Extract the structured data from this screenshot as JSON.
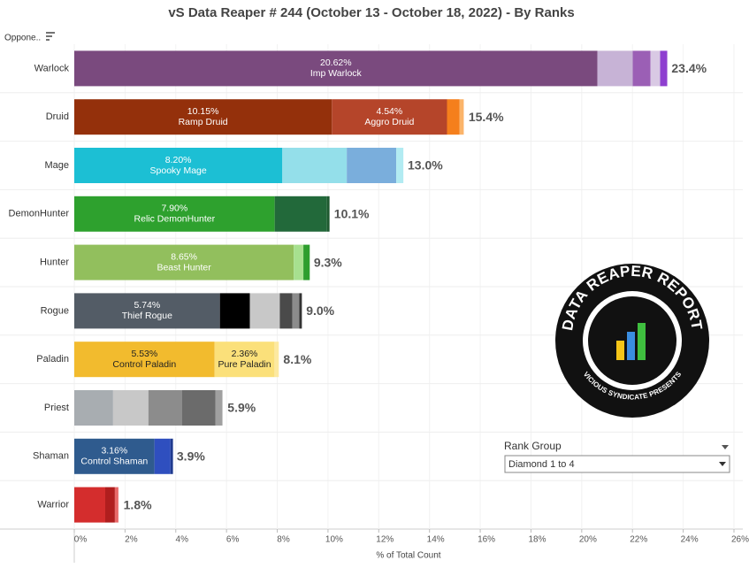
{
  "chart_data": {
    "type": "stacked-bar-horizontal",
    "title": "vS Data Reaper #  244 (October 13 - October 18, 2022) - By Ranks",
    "row_header": "Oppone..",
    "x_label": "% of Total Count",
    "xlim": [
      0,
      26
    ],
    "xticks": [
      {
        "value": 0,
        "label": "0%"
      },
      {
        "value": 2,
        "label": "2%"
      },
      {
        "value": 4,
        "label": "4%"
      },
      {
        "value": 6,
        "label": "6%"
      },
      {
        "value": 8,
        "label": "8%"
      },
      {
        "value": 10,
        "label": "10%"
      },
      {
        "value": 12,
        "label": "12%"
      },
      {
        "value": 14,
        "label": "14%"
      },
      {
        "value": 16,
        "label": "16%"
      },
      {
        "value": 18,
        "label": "18%"
      },
      {
        "value": 20,
        "label": "20%"
      },
      {
        "value": 22,
        "label": "22%"
      },
      {
        "value": 24,
        "label": "24%"
      },
      {
        "value": 26,
        "label": "26%"
      }
    ],
    "categories": [
      "Warlock",
      "Druid",
      "Mage",
      "DemonHunter",
      "Hunter",
      "Rogue",
      "Paladin",
      "Priest",
      "Shaman",
      "Warrior"
    ],
    "totals": [
      23.4,
      15.4,
      13.0,
      10.1,
      9.3,
      9.0,
      8.1,
      5.9,
      3.9,
      1.8
    ],
    "total_labels": [
      "23.4%",
      "15.4%",
      "13.0%",
      "10.1%",
      "9.3%",
      "9.0%",
      "8.1%",
      "5.9%",
      "3.9%",
      "1.8%"
    ],
    "bars": [
      [
        {
          "value": 20.62,
          "value_label": "20.62%",
          "name": "Imp Warlock",
          "color": "#7a4a7e"
        },
        {
          "value": 1.39,
          "color": "#c7b3d6"
        },
        {
          "value": 0.7,
          "color": "#9b5fb5"
        },
        {
          "value": 0.38,
          "color": "#d9c9e4"
        },
        {
          "value": 0.28,
          "color": "#8e3fd0"
        }
      ],
      [
        {
          "value": 10.15,
          "value_label": "10.15%",
          "name": "Ramp Druid",
          "color": "#94300b"
        },
        {
          "value": 4.54,
          "value_label": "4.54%",
          "name": "Aggro Druid",
          "color": "#b5452a"
        },
        {
          "value": 0.49,
          "color": "#f57f1c"
        },
        {
          "value": 0.17,
          "color": "#fbb46a"
        }
      ],
      [
        {
          "value": 8.2,
          "value_label": "8.20%",
          "name": "Spooky Mage",
          "color": "#1cbfd4"
        },
        {
          "value": 2.54,
          "color": "#94dfea"
        },
        {
          "value": 1.95,
          "color": "#7aaedc"
        },
        {
          "value": 0.28,
          "color": "#b2ebf2"
        }
      ],
      [
        {
          "value": 7.9,
          "value_label": "7.90%",
          "name": "Relic DemonHunter",
          "color": "#2ea12e"
        },
        {
          "value": 2.06,
          "color": "#22693a"
        },
        {
          "value": 0.1,
          "color": "#1e5a30"
        }
      ],
      [
        {
          "value": 8.65,
          "value_label": "8.65%",
          "name": "Beast Hunter",
          "color": "#92bf5d"
        },
        {
          "value": 0.38,
          "color": "#a7e08f"
        },
        {
          "value": 0.25,
          "color": "#2e9e2e"
        }
      ],
      [
        {
          "value": 5.74,
          "value_label": "5.74%",
          "name": "Thief Rogue",
          "color": "#535c66"
        },
        {
          "value": 1.18,
          "color": "#000000"
        },
        {
          "value": 1.18,
          "color": "#c8c8c8"
        },
        {
          "value": 0.49,
          "color": "#4a4a4a"
        },
        {
          "value": 0.28,
          "color": "#8c8c8c"
        },
        {
          "value": 0.1,
          "color": "#333333"
        }
      ],
      [
        {
          "value": 5.53,
          "value_label": "5.53%",
          "name": "Control Paladin",
          "color": "#f2bb2e"
        },
        {
          "value": 2.36,
          "value_label": "2.36%",
          "name": "Pure Paladin",
          "color": "#fbe07a"
        },
        {
          "value": 0.17,
          "color": "#fde9a0"
        }
      ],
      [
        {
          "value": 1.53,
          "color": "#a8adb1"
        },
        {
          "value": 1.39,
          "color": "#c8c8c8"
        },
        {
          "value": 1.32,
          "color": "#8c8c8c"
        },
        {
          "value": 1.32,
          "color": "#6b6b6b"
        },
        {
          "value": 0.28,
          "color": "#a0a0a0"
        }
      ],
      [
        {
          "value": 3.16,
          "value_label": "3.16%",
          "name": "Control Shaman",
          "color": "#2f5b8e"
        },
        {
          "value": 0.63,
          "color": "#2f4fbf"
        },
        {
          "value": 0.1,
          "color": "#1f3a8f"
        }
      ],
      [
        {
          "value": 1.22,
          "color": "#d42d2d"
        },
        {
          "value": 0.38,
          "color": "#b01e1e"
        },
        {
          "value": 0.14,
          "color": "#e86a6a"
        }
      ]
    ],
    "filter": {
      "title": "Rank Group",
      "selected": "Diamond 1 to 4"
    },
    "logo": {
      "title": "DATA REAPER REPORT",
      "subtitle": "VICIOUS SYNDICATE PRESENTS"
    }
  }
}
